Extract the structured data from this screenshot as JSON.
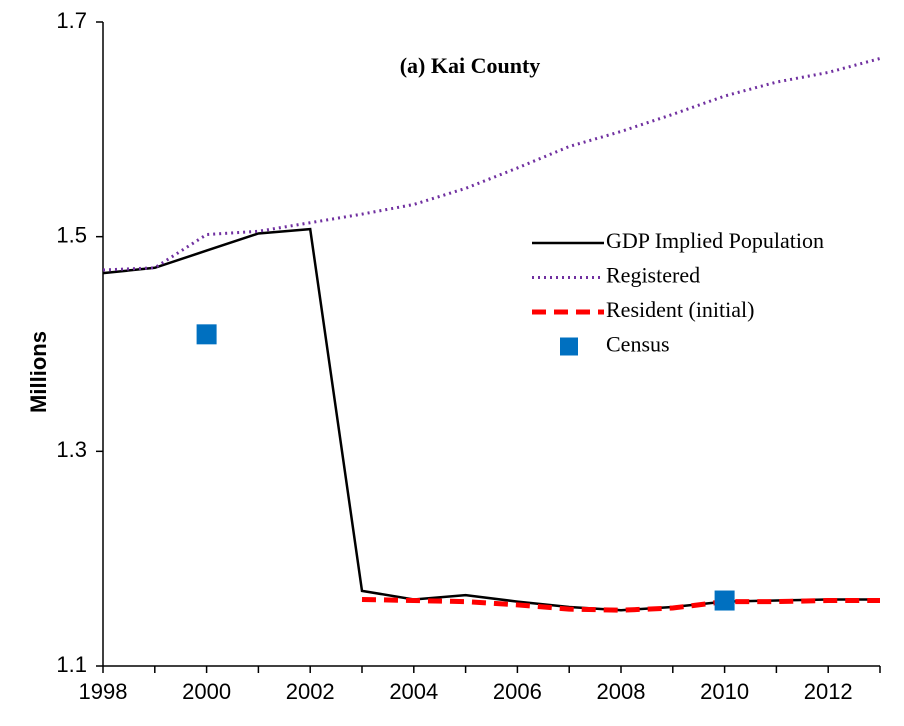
{
  "chart_data": {
    "type": "line",
    "title": "(a) Kai County",
    "ylabel": "Millions",
    "x": [
      1998,
      1999,
      2000,
      2001,
      2002,
      2003,
      2004,
      2005,
      2006,
      2007,
      2008,
      2009,
      2010,
      2011,
      2012,
      2013
    ],
    "xlim": [
      1998,
      2013
    ],
    "xticks": [
      1998,
      2000,
      2002,
      2004,
      2006,
      2008,
      2010,
      2012
    ],
    "xticks_minor": [
      1999,
      2001,
      2003,
      2005,
      2007,
      2009,
      2011,
      2013
    ],
    "ylim": [
      1.1,
      1.7
    ],
    "yticks": [
      1.1,
      1.3,
      1.5,
      1.7
    ],
    "grid": false,
    "legend": "right",
    "series": [
      {
        "name": "GDP Implied Population",
        "color": "#000000",
        "style": "solid",
        "values": [
          1.466,
          1.471,
          1.487,
          1.503,
          1.507,
          1.17,
          1.162,
          1.166,
          1.16,
          1.155,
          1.152,
          1.155,
          1.16,
          1.161,
          1.162,
          1.162
        ]
      },
      {
        "name": "Registered",
        "color": "#7030a0",
        "style": "dotted",
        "values": [
          1.469,
          1.471,
          1.502,
          1.505,
          1.513,
          1.521,
          1.53,
          1.545,
          1.564,
          1.584,
          1.598,
          1.614,
          1.631,
          1.644,
          1.653,
          1.666
        ]
      },
      {
        "name": "Resident (initial)",
        "color": "#ff0000",
        "style": "dashed",
        "values": [
          null,
          null,
          null,
          null,
          null,
          1.162,
          1.161,
          1.16,
          1.157,
          1.153,
          1.152,
          1.154,
          1.16,
          1.16,
          1.161,
          1.161
        ]
      },
      {
        "name": "Census",
        "color": "#0070c0",
        "style": "marker",
        "values": [
          null,
          null,
          1.409,
          null,
          null,
          null,
          null,
          null,
          null,
          null,
          null,
          null,
          1.161,
          null,
          null,
          null
        ]
      }
    ]
  }
}
